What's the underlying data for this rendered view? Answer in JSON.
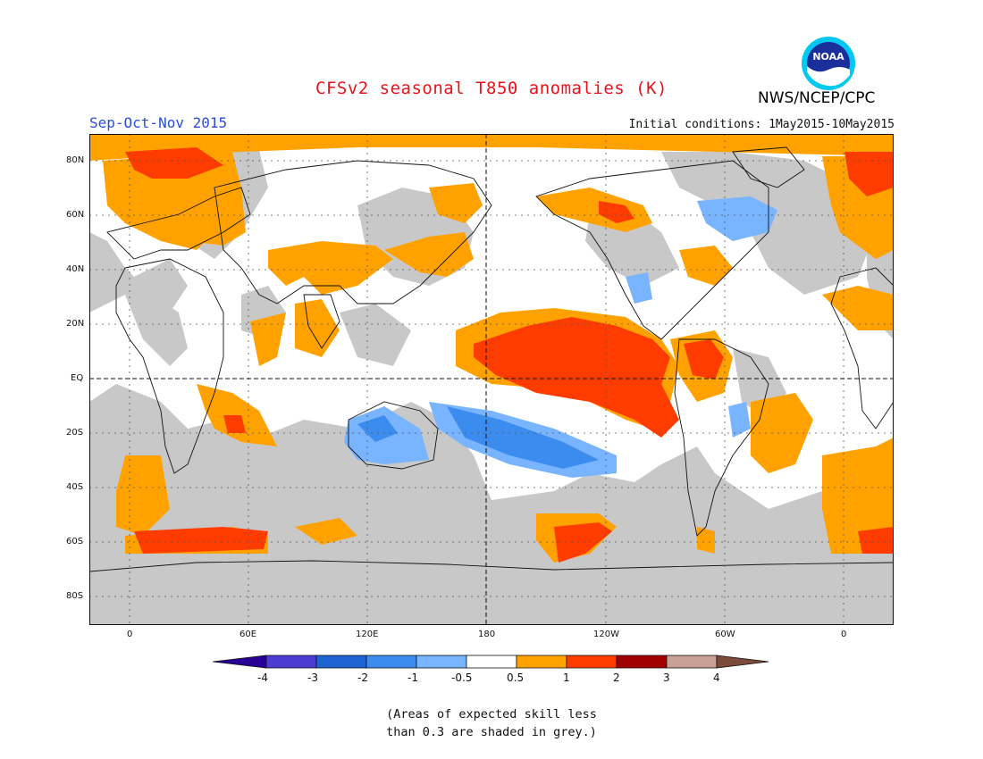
{
  "header": {
    "title": "CFSv2 seasonal T850 anomalies (K)",
    "agency": "NWS/NCEP/CPC",
    "logo_text": "NOAA",
    "season": "Sep-Oct-Nov 2015",
    "initial_conditions": "Initial conditions: 1May2015-10May2015"
  },
  "map": {
    "lat_labels": [
      "80N",
      "60N",
      "40N",
      "20N",
      "EQ",
      "20S",
      "40S",
      "60S",
      "80S"
    ],
    "lon_labels": [
      "0",
      "60E",
      "120E",
      "180",
      "120W",
      "60W",
      "0"
    ],
    "colors": {
      "skill_grey": "#c8c8c8",
      "orange": "#ffa200",
      "red_orange": "#ff3c00",
      "light_blue": "#78b4ff",
      "mid_blue": "#3c8cf0"
    }
  },
  "colorbar": {
    "labels": [
      "-4",
      "-3",
      "-2",
      "-1",
      "-0.5",
      "0.5",
      "1",
      "2",
      "3",
      "4"
    ],
    "colors": [
      "#280096",
      "#4b3cd2",
      "#1e64d2",
      "#3c8cf0",
      "#78b4ff",
      "#ffffff",
      "#ffa200",
      "#ff3c00",
      "#a00000",
      "#c8a096",
      "#7a4a3a"
    ]
  },
  "footnote": {
    "line1": "(Areas of expected skill less",
    "line2": "than 0.3 are shaded in grey.)"
  }
}
